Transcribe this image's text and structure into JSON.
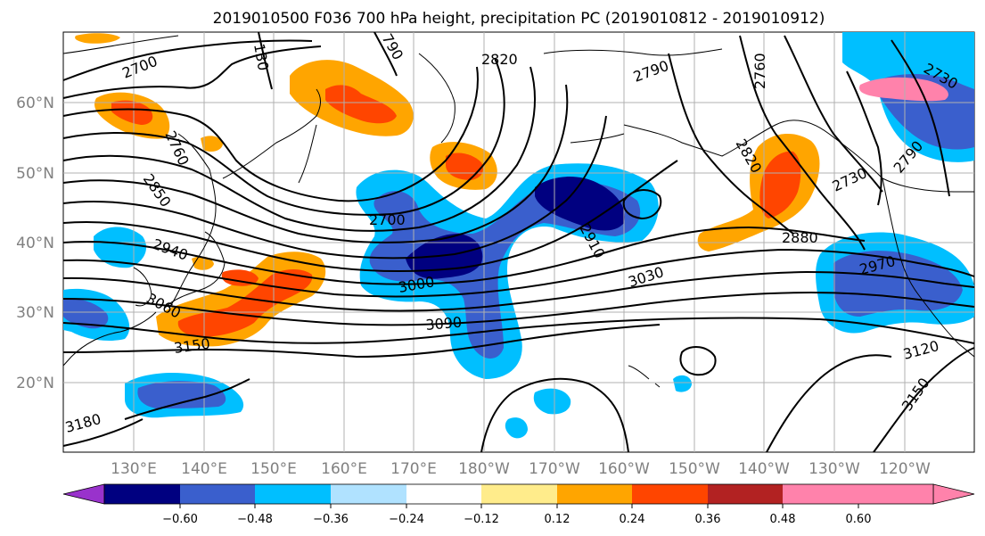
{
  "title": "2019010500 F036 700 hPa height, precipitation PC (2019010812 - 2019010912)",
  "lat_labels": [
    "60°N",
    "50°N",
    "40°N",
    "30°N",
    "20°N"
  ],
  "lon_labels": [
    "130°E",
    "140°E",
    "150°E",
    "160°E",
    "170°E",
    "180°W",
    "170°W",
    "160°W",
    "150°W",
    "140°W",
    "130°W",
    "120°W"
  ],
  "contour_labels": [
    "2700",
    "2820",
    "2790",
    "2760",
    "2730",
    "2760",
    "2850",
    "2940",
    "3060",
    "3150",
    "2700",
    "3000",
    "3090",
    "2910",
    "3030",
    "2880",
    "2820",
    "2730",
    "2790",
    "2970",
    "3120",
    "3150",
    "3180",
    "130",
    "790"
  ],
  "colorbar": {
    "ticks": [
      "−0.60",
      "−0.48",
      "−0.36",
      "−0.24",
      "−0.12",
      "0.12",
      "0.24",
      "0.36",
      "0.48",
      "0.60"
    ],
    "colors": [
      "#9932cc",
      "#000080",
      "#3a5fcd",
      "#00bfff",
      "#b0e2ff",
      "#ffffff",
      "#ffec8b",
      "#ffa500",
      "#ff4500",
      "#b22222",
      "#ff82ab"
    ]
  },
  "colors": {
    "neg_strong": "#000080",
    "neg_mid": "#3a5fcd",
    "neg_light": "#00bfff",
    "pos_light": "#ffa500",
    "pos_mid": "#ff4500",
    "grid": "#b0b0b0"
  }
}
